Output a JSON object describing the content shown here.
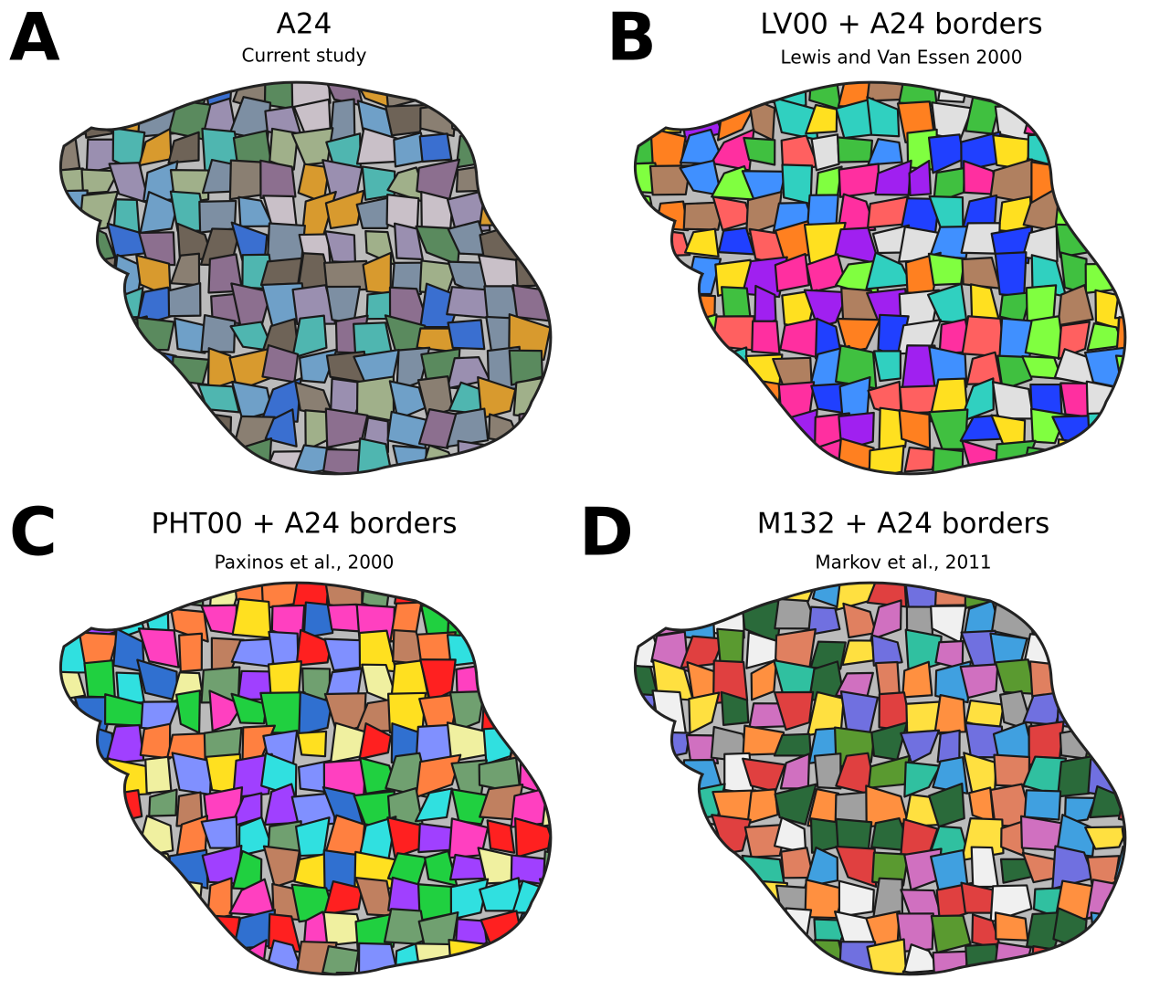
{
  "panels": [
    {
      "letter": "A",
      "title": "A24",
      "subtitle": "Current study"
    },
    {
      "letter": "B",
      "title": "LV00 + A24 borders",
      "subtitle": "Lewis and Van Essen 2000"
    },
    {
      "letter": "C",
      "title": "PHT00 + A24 borders",
      "subtitle": "Paxinos et al., 2000"
    },
    {
      "letter": "D",
      "title": "M132 + A24 borders",
      "subtitle": "Markov et al., 2011"
    }
  ]
}
